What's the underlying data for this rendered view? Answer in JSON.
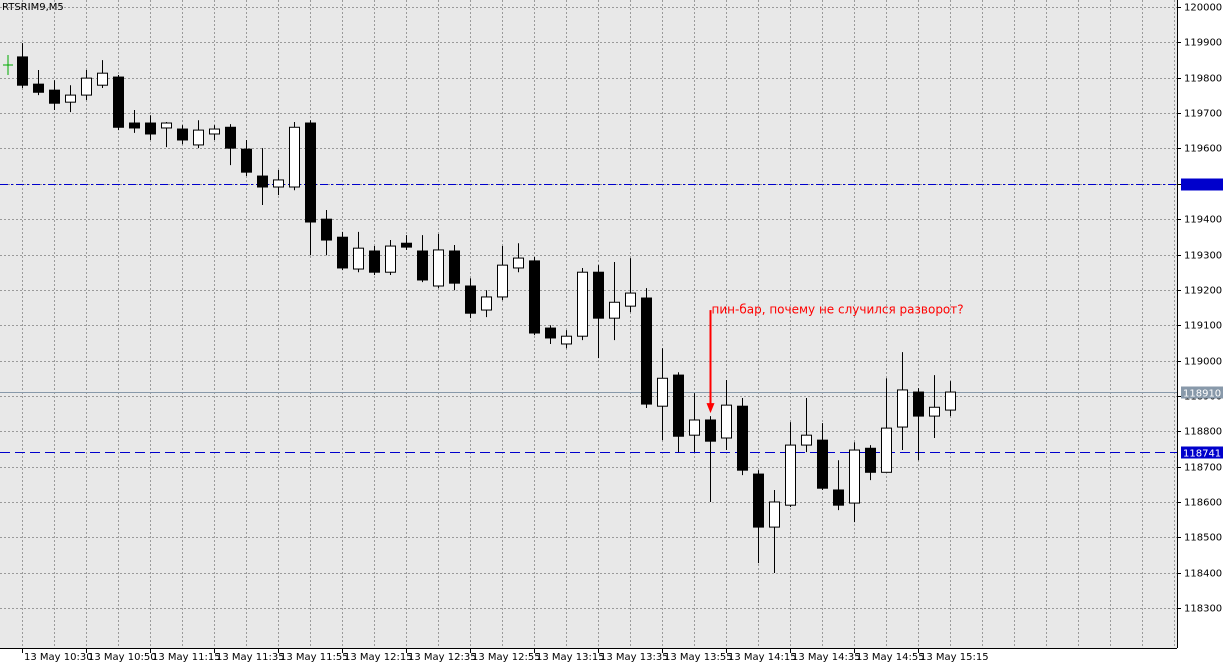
{
  "chart_data": {
    "type": "candlestick",
    "title": "RTSRIM9,M5",
    "categories": [
      "13 May 10:30",
      null,
      null,
      null,
      "13 May 10:50",
      null,
      null,
      null,
      "13 May 11:15",
      null,
      null,
      null,
      "13 May 11:35",
      null,
      null,
      null,
      "13 May 11:55",
      null,
      null,
      null,
      "13 May 12:15",
      null,
      null,
      null,
      "13 May 12:35",
      null,
      null,
      null,
      "13 May 12:55",
      null,
      null,
      null,
      "13 May 13:15",
      null,
      null,
      null,
      "13 May 13:35",
      null,
      null,
      null,
      "13 May 13:55",
      null,
      null,
      null,
      "13 May 14:15",
      null,
      null,
      null,
      "13 May 14:35",
      null,
      null,
      null,
      "13 May 14:55",
      null,
      null,
      null,
      "13 May 15:15",
      null,
      null
    ],
    "open": [
      119859,
      119782,
      119765,
      119731,
      119751,
      119779,
      119802,
      119672,
      119672,
      119658,
      119655,
      119610,
      119641,
      119660,
      119598,
      119522,
      119491,
      119491,
      119672,
      119400,
      119349,
      119259,
      119310,
      119250,
      119332,
      119310,
      119211,
      119310,
      119211,
      119143,
      119180,
      119262,
      119282,
      119092,
      119047,
      119069,
      119250,
      119120,
      119154,
      119177,
      118871,
      118959,
      118789,
      118832,
      118781,
      118871,
      118679,
      118529,
      118591,
      118761,
      118775,
      118634,
      118597,
      118752,
      118684,
      118812,
      118911,
      118843,
      118860
    ],
    "high": [
      119898,
      119822,
      119793,
      119779,
      119822,
      119850,
      119808,
      119709,
      119694,
      119675,
      119666,
      119680,
      119666,
      119669,
      119624,
      119601,
      119539,
      119675,
      119680,
      119426,
      119364,
      119364,
      119324,
      119341,
      119355,
      119355,
      119358,
      119327,
      119233,
      119199,
      119324,
      119332,
      119293,
      119100,
      119086,
      119262,
      119270,
      119279,
      119290,
      119205,
      119035,
      118967,
      118908,
      118843,
      118945,
      118894,
      118690,
      118634,
      118826,
      118894,
      118823,
      118718,
      118769,
      118761,
      118950,
      119024,
      118922,
      118959,
      118942
    ],
    "low": [
      119771,
      119751,
      119709,
      119703,
      119737,
      119771,
      119652,
      119644,
      119624,
      119604,
      119612,
      119601,
      119624,
      119553,
      119522,
      119440,
      119468,
      119482,
      119298,
      119298,
      119256,
      119250,
      119242,
      119242,
      119313,
      119222,
      119205,
      119199,
      119120,
      119123,
      119171,
      119250,
      119072,
      119047,
      119035,
      119058,
      119007,
      119058,
      119137,
      118866,
      118775,
      118741,
      118741,
      118600,
      118747,
      118676,
      118427,
      118399,
      118586,
      118741,
      118634,
      118577,
      118543,
      118662,
      118684,
      118747,
      118718,
      118781,
      118843
    ],
    "close": [
      119779,
      119759,
      119728,
      119751,
      119799,
      119813,
      119660,
      119658,
      119641,
      119672,
      119624,
      119652,
      119655,
      119601,
      119533,
      119491,
      119511,
      119660,
      119392,
      119341,
      119262,
      119318,
      119250,
      119324,
      119321,
      119228,
      119313,
      119219,
      119134,
      119180,
      119270,
      119290,
      119078,
      119064,
      119069,
      119250,
      119120,
      119165,
      119191,
      118877,
      118950,
      118786,
      118832,
      118772,
      118874,
      118690,
      118529,
      118600,
      118761,
      118789,
      118639,
      118591,
      118747,
      118684,
      118809,
      118917,
      118843,
      118868,
      118911
    ],
    "bull_color": "#ffffff",
    "bear_color": "#000000",
    "ylim": [
      118187,
      120020
    ],
    "yticks": [
      120000,
      119900,
      119800,
      119700,
      119600,
      119500,
      119400,
      119300,
      119200,
      119100,
      119000,
      118900,
      118800,
      118700,
      118600,
      118500,
      118400,
      118300
    ],
    "grid": true,
    "levels": [
      {
        "value": 119500,
        "color": "#0000cc",
        "style": "dashdot"
      },
      {
        "value": 118910,
        "color": "#8899aa",
        "style": "solid",
        "label": 118910
      },
      {
        "value": 118741,
        "color": "#0000cc",
        "style": "dashed",
        "label": 118741
      }
    ],
    "annotation": {
      "text": "пин-бар, почему не случился разворот?",
      "index": 43,
      "color": "#ff0000"
    }
  }
}
